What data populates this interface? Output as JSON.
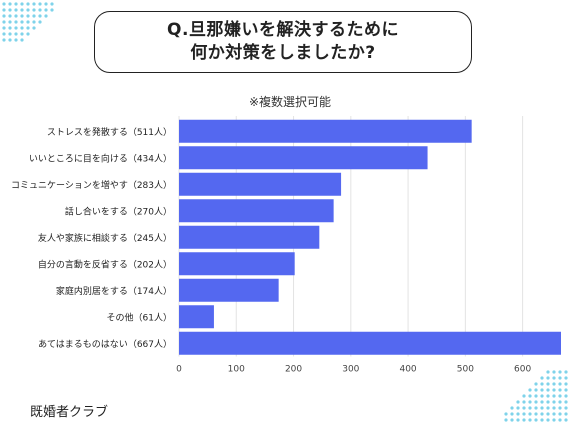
{
  "title": {
    "line1": "Q.旦那嫌いを解決するために",
    "line2": "何か対策をしましたか?"
  },
  "subtitle": "※複数選択可能",
  "brand": "既婚者クラブ",
  "colors": {
    "bar": "#5468f0",
    "grid": "#e3e3e3",
    "dots": "#7fd3ea"
  },
  "chart_data": {
    "type": "bar",
    "orientation": "horizontal",
    "categories": [
      "ストレスを発散する（511人）",
      "いいところに目を向ける（434人）",
      "コミュニケーションを増やす（283人）",
      "話し合いをする（270人）",
      "友人や家族に相談する（245人）",
      "自分の言動を反省する（202人）",
      "家庭内別居をする（174人）",
      "その他（61人）",
      "あてはまるものはない（667人）"
    ],
    "values": [
      511,
      434,
      283,
      270,
      245,
      202,
      174,
      61,
      667
    ],
    "xlim": [
      0,
      667
    ],
    "xticks": [
      0,
      100,
      200,
      300,
      400,
      500,
      600
    ],
    "grid": true
  }
}
